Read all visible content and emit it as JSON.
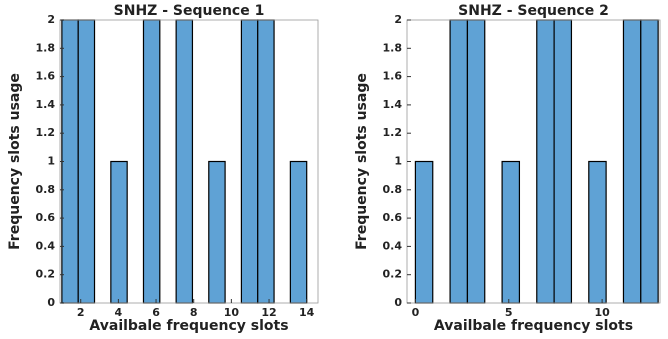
{
  "chart_data": [
    {
      "type": "histogram",
      "title": "SNHZ - Sequence 1",
      "xlabel": "Availbale frequency slots",
      "ylabel": "Frequency slots usage",
      "bins": [
        1,
        1.867,
        2.733,
        3.6,
        4.467,
        5.333,
        6.2,
        7.067,
        7.933,
        8.8,
        9.667,
        10.533,
        11.4,
        12.267,
        13.133,
        14
      ],
      "values": [
        2,
        2,
        0,
        1,
        0,
        2,
        0,
        2,
        0,
        1,
        0,
        2,
        2,
        0,
        1
      ],
      "color": "#5fa2d5",
      "xlim": [
        0.9,
        14.6
      ],
      "xticks": [
        2,
        4,
        6,
        8,
        10,
        12,
        14
      ],
      "ylim": [
        0,
        2
      ],
      "yticks": [
        0,
        0.2,
        0.4,
        0.6,
        0.8,
        1,
        1.2,
        1.4,
        1.6,
        1.8,
        2
      ],
      "grid": false
    },
    {
      "type": "histogram",
      "title": "SNHZ - Sequence 2",
      "xlabel": "Availbale frequency slots",
      "ylabel": "Frequency slots usage",
      "bins": [
        0,
        0.929,
        1.857,
        2.786,
        3.714,
        4.643,
        5.571,
        6.5,
        7.429,
        8.357,
        9.286,
        10.214,
        11.143,
        12.071,
        13
      ],
      "values": [
        1,
        0,
        2,
        2,
        0,
        1,
        0,
        2,
        2,
        0,
        1,
        0,
        2,
        2
      ],
      "color": "#5fa2d5",
      "xlim": [
        -0.45,
        13.1
      ],
      "xticks": [
        0,
        5,
        10
      ],
      "ylim": [
        0,
        2
      ],
      "yticks": [
        0,
        0.2,
        0.4,
        0.6,
        0.8,
        1,
        1.2,
        1.4,
        1.6,
        1.8,
        2
      ],
      "grid": false
    }
  ]
}
